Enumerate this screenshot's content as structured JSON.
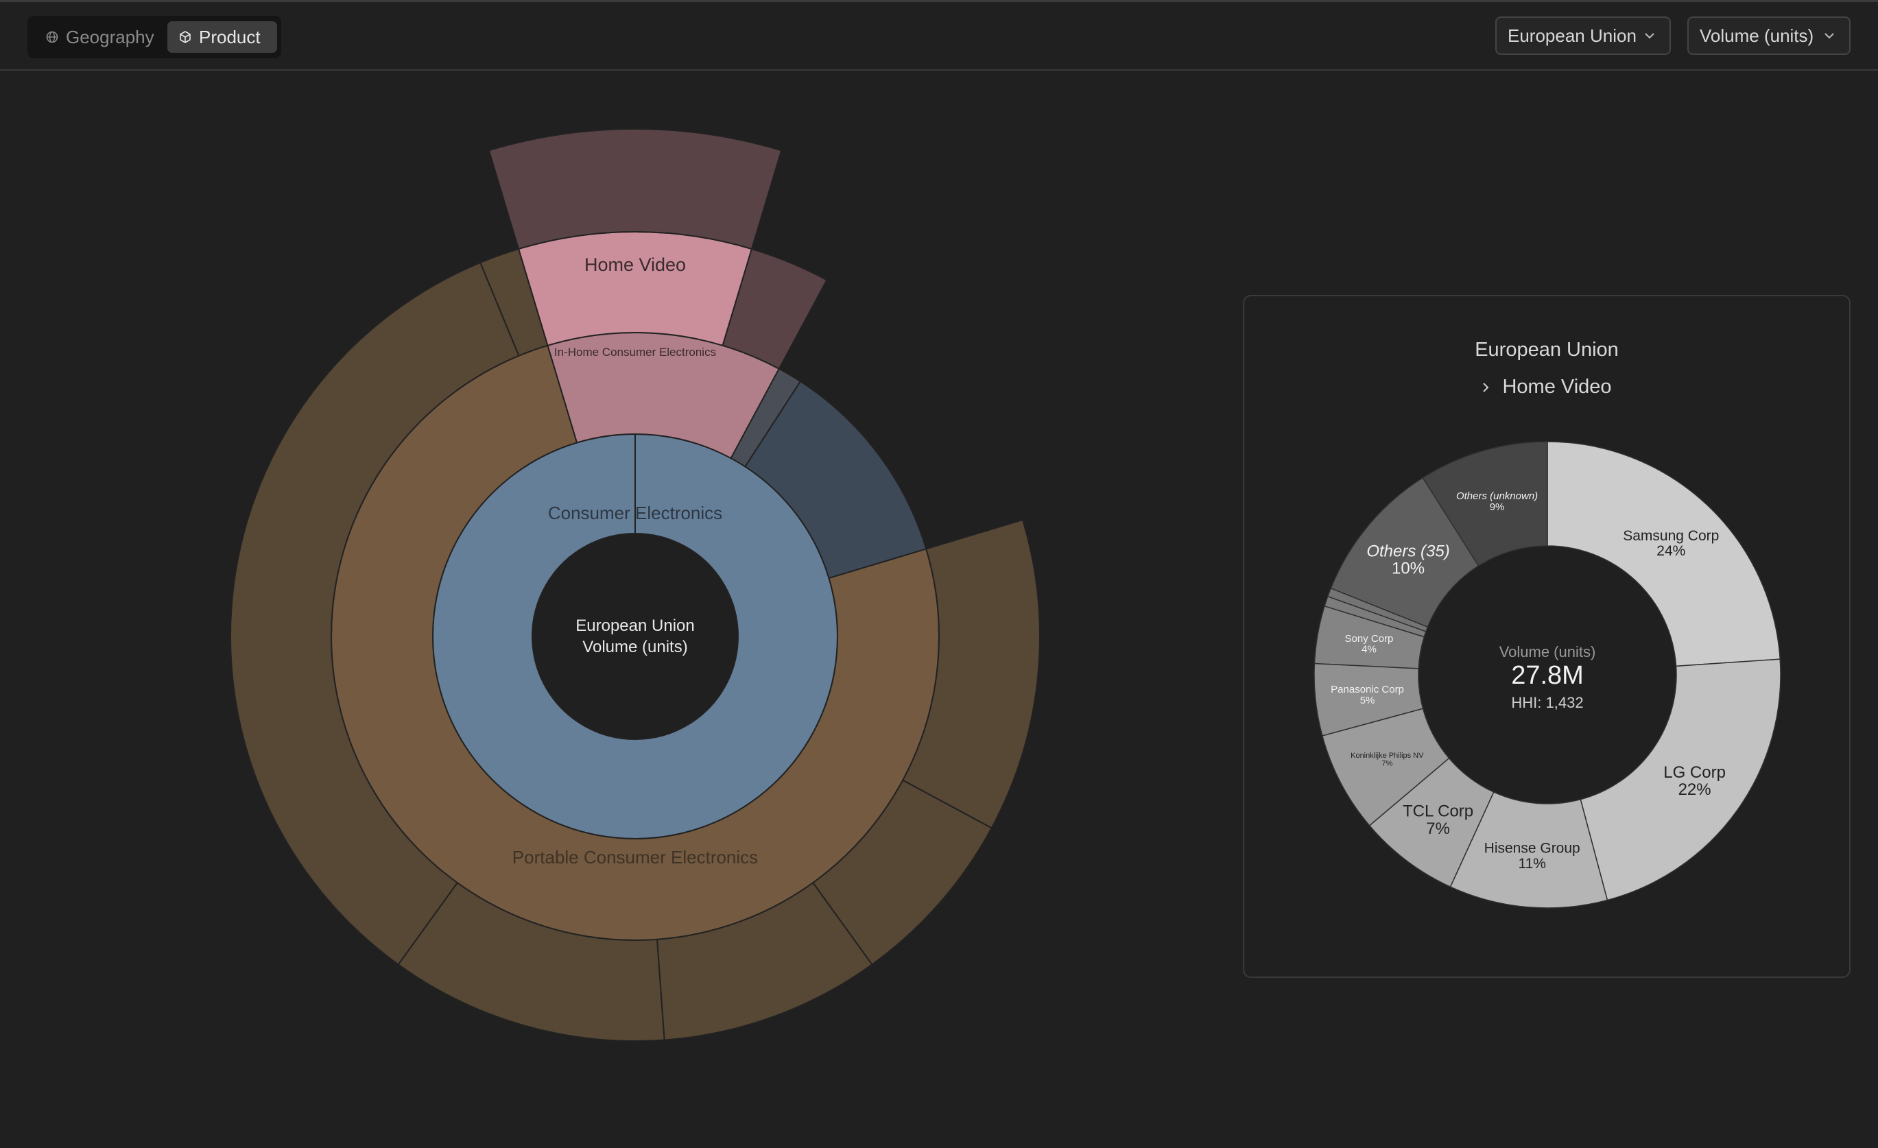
{
  "toolbar": {
    "view_tabs": [
      {
        "label": "Geography",
        "icon": "globe-icon",
        "selected": false
      },
      {
        "label": "Product",
        "icon": "cube-icon",
        "selected": true
      }
    ],
    "region_select": {
      "value": "European Union"
    },
    "metric_select": {
      "value": "Volume (units)"
    }
  },
  "sunburst": {
    "center": {
      "line1": "European Union",
      "line2": "Volume (units)"
    },
    "colors": {
      "consumer": "#667f98",
      "portable": "#735a41",
      "portable_leaf": "#574735",
      "inhome": "#b17f89",
      "homevideo": "#cb8f9b",
      "televisions": "#5a4347",
      "inhome_dim": "#5a4347",
      "other": "#3e4958",
      "other_thin": "#4a4f57",
      "stroke": "#222222"
    },
    "rings": [
      [
        {
          "id": "consumer",
          "label": "Consumer Electronics",
          "share": 100,
          "color": "consumer"
        }
      ],
      [
        {
          "id": "inhome",
          "label": "In-Home Consumer Electronics",
          "share": 12.5,
          "color": "inhome"
        },
        {
          "id": "other_thin",
          "label": "",
          "share": 1.3,
          "color": "other_thin"
        },
        {
          "id": "other",
          "label": "",
          "share": 11.2,
          "color": "other"
        },
        {
          "id": "portable",
          "label": "Portable Consumer Electronics",
          "share": 75,
          "color": "portable"
        }
      ],
      [
        {
          "id": "homevideo",
          "label": "Home Video",
          "share": 9.3,
          "color": "homevideo"
        },
        {
          "id": "inhome_rest",
          "label": "",
          "share": 3.2,
          "color": "inhome_dim"
        },
        {
          "id": "gap",
          "label": "",
          "share": 12.5,
          "color": null
        },
        {
          "id": "p1",
          "label": "",
          "share": 12.5,
          "color": "portable_leaf"
        },
        {
          "id": "p2",
          "label": "",
          "share": 7.2,
          "color": "portable_leaf"
        },
        {
          "id": "p3",
          "label": "",
          "share": 8.8,
          "color": "portable_leaf"
        },
        {
          "id": "p4",
          "label": "",
          "share": 11.1,
          "color": "portable_leaf"
        },
        {
          "id": "p5",
          "label": "",
          "share": 33.8,
          "color": "portable_leaf"
        },
        {
          "id": "p6",
          "label": "",
          "share": 1.6,
          "color": "portable_leaf"
        }
      ],
      [
        {
          "id": "gap2",
          "label": "",
          "share": 0,
          "color": null
        },
        {
          "id": "televisions",
          "label": "",
          "share": 9.3,
          "color": "televisions"
        }
      ]
    ]
  },
  "breakdown": {
    "title": "European Union",
    "path": "Home Video",
    "center": {
      "metric": "Volume (units)",
      "total": "27.8M",
      "hhi": "HHI: 1,432"
    },
    "slices": [
      {
        "name": "Samsung Corp",
        "pct": "24%",
        "share": 24,
        "color": "#cccccc",
        "label_color": "#222222",
        "size": "md",
        "italic": false
      },
      {
        "name": "LG Corp",
        "pct": "22%",
        "share": 22,
        "color": "#c2c2c2",
        "label_color": "#222222",
        "size": "lg",
        "italic": false
      },
      {
        "name": "Hisense Group",
        "pct": "11%",
        "share": 11,
        "color": "#b5b5b5",
        "label_color": "#222222",
        "size": "md",
        "italic": false
      },
      {
        "name": "TCL Corp",
        "pct": "7%",
        "share": 7,
        "color": "#a8a8a8",
        "label_color": "#222222",
        "size": "lg",
        "italic": false
      },
      {
        "name": "Koninklijke Philips NV",
        "pct": "7%",
        "share": 7,
        "color": "#9c9c9c",
        "label_color": "#222222",
        "size": "xs",
        "italic": false
      },
      {
        "name": "Panasonic Corp",
        "pct": "5%",
        "share": 5,
        "color": "#909090",
        "label_color": "#f2f2f2",
        "size": "sm",
        "italic": false
      },
      {
        "name": "Sony Corp",
        "pct": "4%",
        "share": 4,
        "color": "#848484",
        "label_color": "#f2f2f2",
        "size": "sm",
        "italic": false
      },
      {
        "name": "",
        "pct": "",
        "share": 0.7,
        "color": "#7c7c7c",
        "label_color": "#f2f2f2",
        "size": "xs",
        "italic": false
      },
      {
        "name": "",
        "pct": "",
        "share": 0.6,
        "color": "#747474",
        "label_color": "#f2f2f2",
        "size": "xs",
        "italic": false
      },
      {
        "name": "Others (35)",
        "pct": "10%",
        "share": 10,
        "color": "#5e5e5e",
        "label_color": "#f2f2f2",
        "size": "lg",
        "italic": true
      },
      {
        "name": "Others (unknown)",
        "pct": "9%",
        "share": 9,
        "color": "#454545",
        "label_color": "#f2f2f2",
        "size": "sm",
        "italic": true
      }
    ]
  }
}
